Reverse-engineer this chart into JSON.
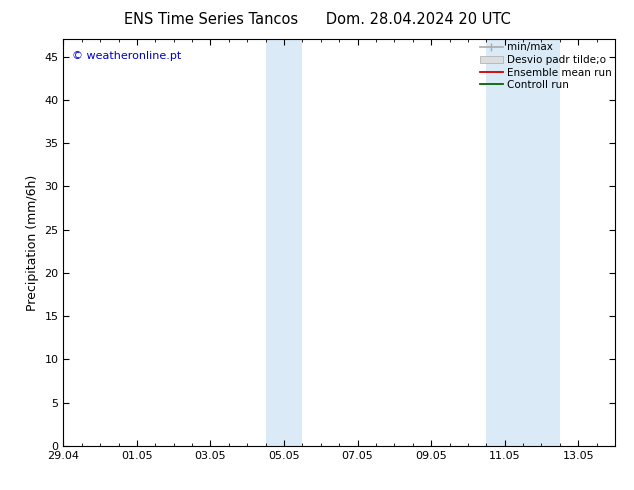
{
  "title": "ENS Time Series Tancos      Dom. 28.04.2024 20 UTC",
  "ylabel": "Precipitation (mm/6h)",
  "watermark": "© weatheronline.pt",
  "watermark_color": "#0000cc",
  "ylim": [
    0,
    47
  ],
  "yticks": [
    0,
    5,
    10,
    15,
    20,
    25,
    30,
    35,
    40,
    45
  ],
  "xlim": [
    0,
    15
  ],
  "xtick_labels": [
    "29.04",
    "01.05",
    "03.05",
    "05.05",
    "07.05",
    "09.05",
    "11.05",
    "13.05"
  ],
  "xtick_positions": [
    0,
    2,
    4,
    6,
    8,
    10,
    12,
    14
  ],
  "shade_bands": [
    {
      "x_start": 5.5,
      "x_end": 6.0,
      "color": "#daeaf7"
    },
    {
      "x_start": 6.0,
      "x_end": 6.5,
      "color": "#daeaf7"
    },
    {
      "x_start": 11.5,
      "x_end": 12.0,
      "color": "#daeaf7"
    },
    {
      "x_start": 12.0,
      "x_end": 13.5,
      "color": "#daeaf7"
    }
  ],
  "background_color": "#ffffff",
  "plot_bg_color": "#ffffff",
  "border_color": "#000000",
  "title_fontsize": 10.5,
  "label_fontsize": 9,
  "tick_fontsize": 8,
  "watermark_fontsize": 8,
  "legend_fontsize": 7.5
}
